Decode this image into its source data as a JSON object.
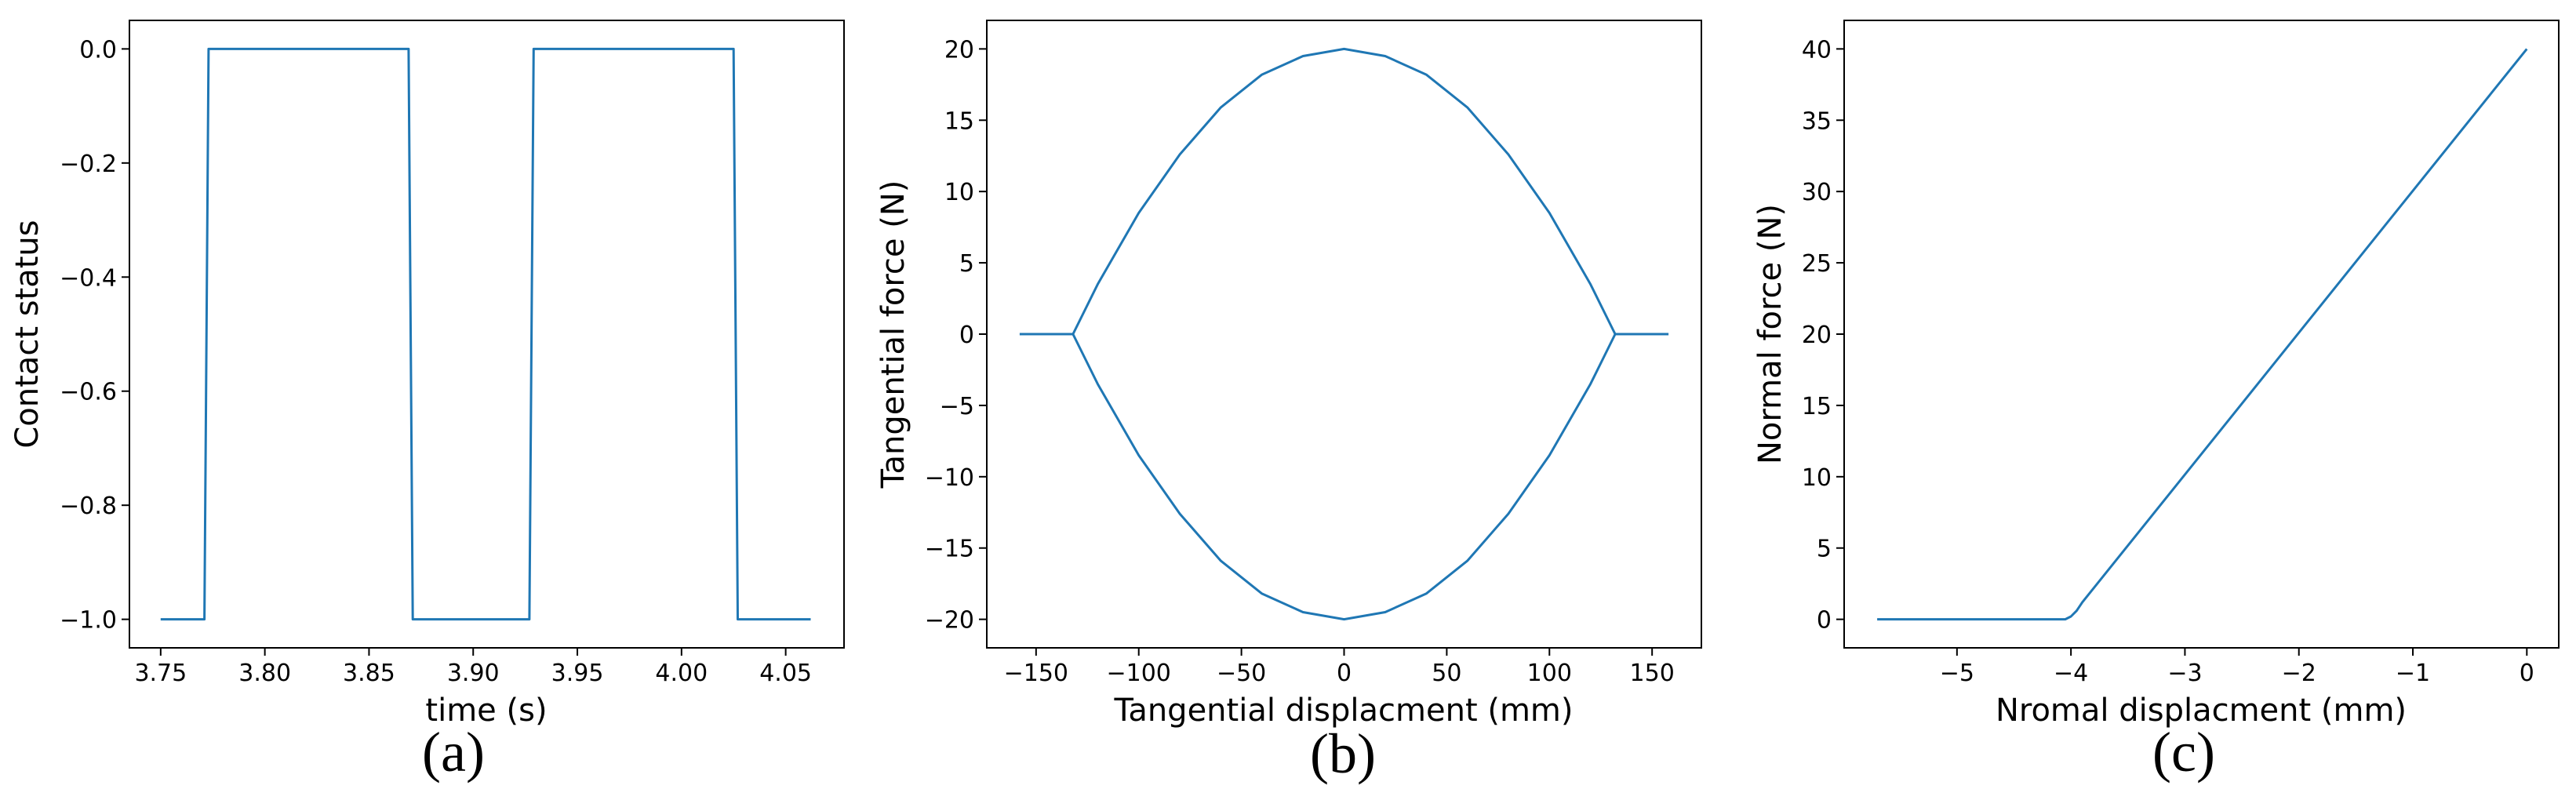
{
  "figure": {
    "colors": {
      "line": "#1f77b4",
      "axes": "#000000",
      "background": "#ffffff"
    }
  },
  "chart_data": [
    {
      "type": "line",
      "caption": "(a)",
      "title": "",
      "xlabel": "time (s)",
      "ylabel": "Contact status",
      "xlim": [
        3.735,
        4.078
      ],
      "ylim": [
        -1.05,
        0.05
      ],
      "xticks": [
        3.75,
        3.8,
        3.85,
        3.9,
        3.95,
        4.0,
        4.05
      ],
      "xtick_labels": [
        "3.75",
        "3.80",
        "3.85",
        "3.90",
        "3.95",
        "4.00",
        "4.05"
      ],
      "yticks": [
        0.0,
        -0.2,
        -0.4,
        -0.6,
        -0.8,
        -1.0
      ],
      "ytick_labels": [
        "0.0",
        "−0.2",
        "−0.4",
        "−0.6",
        "−0.8",
        "−1.0"
      ],
      "grid": false,
      "legend": "none",
      "series": [
        {
          "x": [
            3.75,
            3.771,
            3.773,
            3.869,
            3.871,
            3.927,
            3.929,
            4.025,
            4.027,
            4.062
          ],
          "y": [
            -1.0,
            -1.0,
            0.0,
            0.0,
            -1.0,
            -1.0,
            0.0,
            0.0,
            -1.0,
            -1.0
          ]
        }
      ]
    },
    {
      "type": "line",
      "caption": "(b)",
      "title": "",
      "xlabel": "Tangential displacment (mm)",
      "ylabel": "Tangential force (N)",
      "xlim": [
        -174,
        174
      ],
      "ylim": [
        -22,
        22
      ],
      "xticks": [
        -150,
        -100,
        -50,
        0,
        50,
        100,
        150
      ],
      "xtick_labels": [
        "−150",
        "−100",
        "−50",
        "0",
        "50",
        "100",
        "150"
      ],
      "yticks": [
        20,
        15,
        10,
        5,
        0,
        -5,
        -10,
        -15,
        -20
      ],
      "ytick_labels": [
        "20",
        "15",
        "10",
        "5",
        "0",
        "−5",
        "−10",
        "−15",
        "−20"
      ],
      "grid": false,
      "legend": "none",
      "series": [
        {
          "x": [
            -158,
            -132,
            -120,
            -100,
            -80,
            -60,
            -40,
            -20,
            0,
            20,
            40,
            60,
            80,
            100,
            120,
            132,
            158
          ],
          "y": [
            0,
            0,
            3.5,
            8.5,
            12.6,
            15.9,
            18.2,
            19.5,
            20,
            19.5,
            18.2,
            15.9,
            12.6,
            8.5,
            3.5,
            0,
            0
          ]
        },
        {
          "x": [
            -132,
            -120,
            -100,
            -80,
            -60,
            -40,
            -20,
            0,
            20,
            40,
            60,
            80,
            100,
            120,
            132
          ],
          "y": [
            0,
            -3.5,
            -8.5,
            -12.6,
            -15.9,
            -18.2,
            -19.5,
            -20,
            -19.5,
            -18.2,
            -15.9,
            -12.6,
            -8.5,
            -3.5,
            0
          ]
        }
      ]
    },
    {
      "type": "line",
      "caption": "(c)",
      "title": "",
      "xlabel": "Nromal displacment (mm)",
      "ylabel": "Normal force (N)",
      "xlim": [
        -5.99,
        0.28
      ],
      "ylim": [
        -2,
        42
      ],
      "xticks": [
        -5,
        -4,
        -3,
        -2,
        -1,
        0
      ],
      "xtick_labels": [
        "−5",
        "−4",
        "−3",
        "−2",
        "−1",
        "0"
      ],
      "yticks": [
        40,
        35,
        30,
        25,
        20,
        15,
        10,
        5,
        0
      ],
      "ytick_labels": [
        "40",
        "35",
        "30",
        "25",
        "20",
        "15",
        "10",
        "5",
        "0"
      ],
      "grid": false,
      "legend": "none",
      "series": [
        {
          "x": [
            -5.7,
            -4.05,
            -4.0,
            -3.95,
            -3.9,
            0.0
          ],
          "y": [
            0,
            0,
            0.2,
            0.6,
            1.2,
            40
          ]
        }
      ]
    }
  ]
}
